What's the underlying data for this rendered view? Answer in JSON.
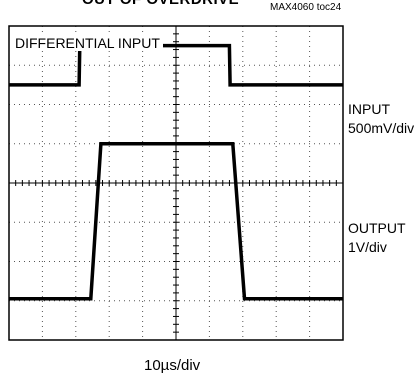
{
  "figure": {
    "title": "OUT OF OVERDRIVE",
    "part_number": "MAX4060 toc24",
    "box_label": "DIFFERENTIAL INPUT",
    "channels": [
      {
        "label": "INPUT",
        "scale": "500mV/div"
      },
      {
        "label": "OUTPUT",
        "scale": "1V/div"
      }
    ],
    "timebase": "10µs/div"
  },
  "chart_data": {
    "type": "line",
    "title": "OUT OF OVERDRIVE",
    "xlabel": "10µs/div",
    "ylabel": "",
    "xlim": [
      0,
      10
    ],
    "ylim": [
      0,
      8
    ],
    "grid": true,
    "grid_divisions": {
      "x": 10,
      "y": 8
    },
    "series": [
      {
        "name": "INPUT",
        "x": [
          0,
          2.1,
          2.12,
          6.6,
          6.62,
          10
        ],
        "y": [
          6.5,
          6.5,
          7.5,
          7.5,
          6.5,
          6.5
        ]
      },
      {
        "name": "OUTPUT",
        "x": [
          0,
          2.45,
          2.75,
          6.7,
          7.05,
          10
        ],
        "y": [
          1.05,
          1.05,
          5.0,
          5.0,
          1.05,
          1.05
        ]
      }
    ]
  }
}
